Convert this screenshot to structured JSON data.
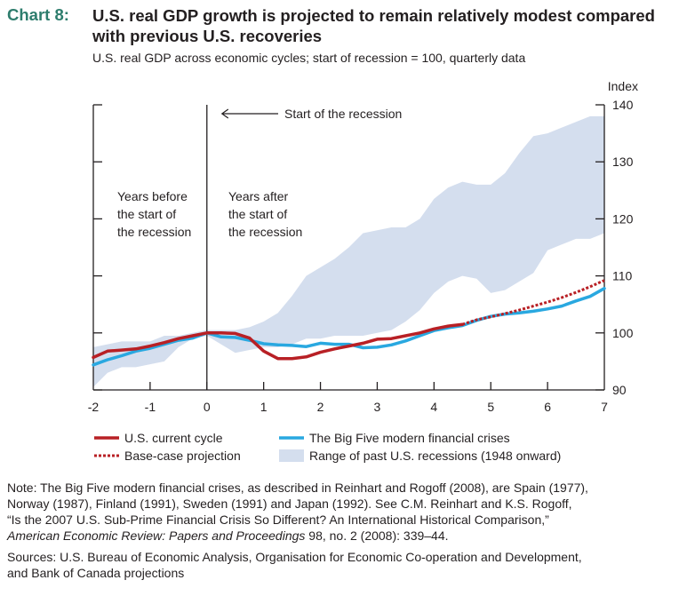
{
  "header": {
    "chart_label": "Chart 8:",
    "title": "U.S. real GDP growth is projected to remain relatively modest compared with previous U.S. recoveries",
    "subtitle": "U.S. real GDP across economic cycles; start of recession = 100, quarterly data"
  },
  "chart_data": {
    "type": "line",
    "ylabel": "Index",
    "xlim": [
      -2,
      7
    ],
    "ylim": [
      90,
      140
    ],
    "x_ticks": [
      "-2",
      "-1",
      "0",
      "1",
      "2",
      "3",
      "4",
      "5",
      "6",
      "7"
    ],
    "y_ticks": [
      "90",
      "100",
      "110",
      "120",
      "130",
      "140"
    ],
    "annotations": {
      "start_arrow": "Start of the recession",
      "before": [
        "Years before",
        "the start of",
        "the recession"
      ],
      "after": [
        "Years after",
        "the start of",
        "the recession"
      ]
    },
    "band": {
      "name": "Range of past U.S. recessions (1948 onward)",
      "color": "#d4deee",
      "x": [
        -2,
        -1.75,
        -1.5,
        -1.25,
        -1,
        -0.75,
        -0.5,
        -0.25,
        0,
        0.25,
        0.5,
        0.75,
        1,
        1.25,
        1.5,
        1.75,
        2,
        2.25,
        2.5,
        2.75,
        3,
        3.25,
        3.5,
        3.75,
        4,
        4.25,
        4.5,
        4.75,
        5,
        5.25,
        5.5,
        5.75,
        6,
        6.25,
        6.5,
        6.75,
        7
      ],
      "upper": [
        97.5,
        98,
        98.5,
        98.5,
        98.5,
        99.5,
        99.5,
        100,
        100.5,
        100.5,
        100.5,
        101,
        102,
        103.5,
        106.5,
        110,
        111.5,
        113,
        115,
        117.5,
        118,
        118.5,
        118.5,
        120,
        123.5,
        125.5,
        126.5,
        126,
        126,
        128,
        131.5,
        134.5,
        135,
        136,
        137,
        138,
        138
      ],
      "lower": [
        90.5,
        93,
        94,
        94,
        94.5,
        95,
        97.5,
        99,
        99.5,
        98,
        96.5,
        97,
        97.5,
        97.5,
        98,
        99,
        99,
        99.5,
        99.5,
        99.5,
        100,
        100.5,
        102,
        104,
        107,
        109,
        110,
        109.5,
        107,
        107.5,
        109,
        110.5,
        114.5,
        115.5,
        116.5,
        116.5,
        117.5
      ]
    },
    "series": [
      {
        "name": "U.S. current cycle",
        "color": "#b82025",
        "style": "solid",
        "x": [
          -2,
          -1.75,
          -1.5,
          -1.25,
          -1,
          -0.75,
          -0.5,
          -0.25,
          0,
          0.25,
          0.5,
          0.75,
          1,
          1.25,
          1.5,
          1.75,
          2,
          2.25,
          2.5,
          2.75,
          3,
          3.25,
          3.5,
          3.75,
          4,
          4.25,
          4.5
        ],
        "values": [
          95.7,
          96.8,
          97,
          97.2,
          97.7,
          98.3,
          99,
          99.5,
          100,
          100,
          99.9,
          99.1,
          96.8,
          95.5,
          95.5,
          95.8,
          96.6,
          97.2,
          97.7,
          98.2,
          98.9,
          99,
          99.5,
          100,
          100.7,
          101.2,
          101.5
        ]
      },
      {
        "name": "Base-case projection",
        "color": "#b82025",
        "style": "dotted",
        "x": [
          4.5,
          4.75,
          5,
          5.25,
          5.5,
          5.75,
          6,
          6.25,
          6.5,
          6.75,
          7
        ],
        "values": [
          101.5,
          102.3,
          102.8,
          103.4,
          104.0,
          104.7,
          105.4,
          106.2,
          107.1,
          108.1,
          109.2
        ]
      },
      {
        "name": "The Big Five modern financial crises",
        "color": "#29a8e0",
        "style": "solid",
        "x": [
          -2,
          -1.75,
          -1.5,
          -1.25,
          -1,
          -0.75,
          -0.5,
          -0.25,
          0,
          0.25,
          0.5,
          0.75,
          1,
          1.25,
          1.5,
          1.75,
          2,
          2.25,
          2.5,
          2.75,
          3,
          3.25,
          3.5,
          3.75,
          4,
          4.25,
          4.5,
          4.75,
          5,
          5.25,
          5.5,
          5.75,
          6,
          6.25,
          6.5,
          6.75,
          7
        ],
        "values": [
          94.4,
          95.3,
          96,
          96.8,
          97.3,
          98,
          98.7,
          99.1,
          100,
          99.3,
          99.2,
          98.7,
          98.1,
          97.9,
          97.8,
          97.6,
          98.2,
          98,
          98,
          97.4,
          97.5,
          97.9,
          98.6,
          99.5,
          100.4,
          100.9,
          101.3,
          102.2,
          102.9,
          103.3,
          103.5,
          103.8,
          104.2,
          104.7,
          105.6,
          106.4,
          107.8
        ]
      }
    ],
    "legend": {
      "current": "U.S. current cycle",
      "projection": "Base-case projection",
      "bigfive": "The Big Five modern financial crises",
      "range": "Range of past U.S. recessions (1948 onward)"
    }
  },
  "notes": {
    "note_line1": "Note: The Big Five modern financial crises, as described in Reinhart and Rogoff (2008), are Spain (1977),",
    "note_line2": "Norway (1987), Finland (1991), Sweden (1991) and Japan (1992). See C.M. Reinhart and K.S. Rogoff,",
    "note_line3": "“Is the 2007 U.S. Sub-Prime Financial Crisis So Different? An International Historical Comparison,”",
    "note_journal": "American Economic Review: Papers and Proceedings",
    "note_tail": " 98, no. 2 (2008): 339–44.",
    "sources_line1": "Sources: U.S. Bureau of Economic Analysis, Organisation for Economic Co-operation and Development,",
    "sources_line2": "and Bank of Canada projections"
  }
}
